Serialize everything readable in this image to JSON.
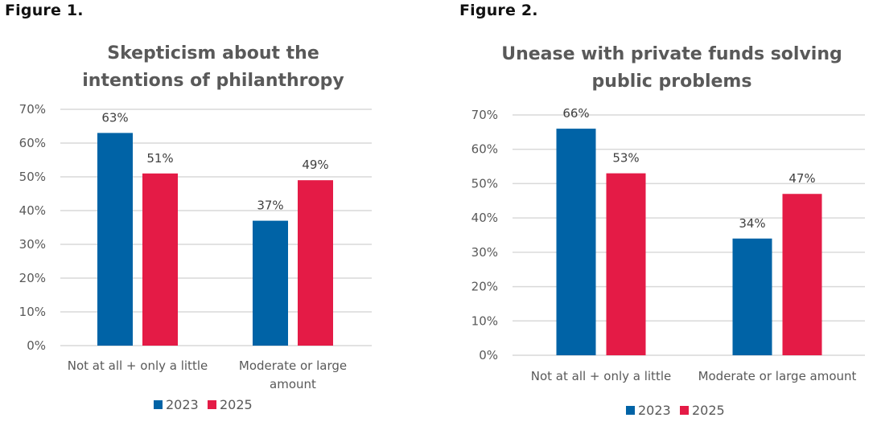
{
  "figures": [
    {
      "label": "Figure 1.",
      "title_lines": [
        "Skepticism about the",
        "intentions of philanthropy"
      ]
    },
    {
      "label": "Figure 2.",
      "title_lines": [
        "Unease with private funds solving",
        "public problems"
      ]
    }
  ],
  "colors": {
    "2023": "#0063a6",
    "2025": "#e41b46"
  },
  "chart_data": [
    {
      "type": "bar",
      "title": "Skepticism about the intentions of philanthropy",
      "xlabel": "",
      "ylabel": "",
      "categories": [
        [
          "Not at all + only a little"
        ],
        [
          "Moderate or large",
          "amount"
        ]
      ],
      "series": [
        {
          "name": "2023",
          "values": [
            63,
            37
          ],
          "labels": [
            "63%",
            "37%"
          ]
        },
        {
          "name": "2025",
          "values": [
            51,
            49
          ],
          "labels": [
            "51%",
            "49%"
          ]
        }
      ],
      "ylim": [
        0,
        70
      ],
      "yticks": [
        0,
        10,
        20,
        30,
        40,
        50,
        60,
        70
      ],
      "ytick_labels": [
        "0%",
        "10%",
        "20%",
        "30%",
        "40%",
        "50%",
        "60%",
        "70%"
      ],
      "grid": true,
      "legend": {
        "position": "bottom",
        "entries": [
          "2023",
          "2025"
        ]
      }
    },
    {
      "type": "bar",
      "title": "Unease with private funds solving public problems",
      "xlabel": "",
      "ylabel": "",
      "categories": [
        [
          "Not at all + only a little"
        ],
        [
          "Moderate or large amount"
        ]
      ],
      "series": [
        {
          "name": "2023",
          "values": [
            66,
            34
          ],
          "labels": [
            "66%",
            "34%"
          ]
        },
        {
          "name": "2025",
          "values": [
            53,
            47
          ],
          "labels": [
            "53%",
            "47%"
          ]
        }
      ],
      "ylim": [
        0,
        70
      ],
      "yticks": [
        0,
        10,
        20,
        30,
        40,
        50,
        60,
        70
      ],
      "ytick_labels": [
        "0%",
        "10%",
        "20%",
        "30%",
        "40%",
        "50%",
        "60%",
        "70%"
      ],
      "grid": true,
      "legend": {
        "position": "bottom",
        "entries": [
          "2023",
          "2025"
        ]
      }
    }
  ]
}
